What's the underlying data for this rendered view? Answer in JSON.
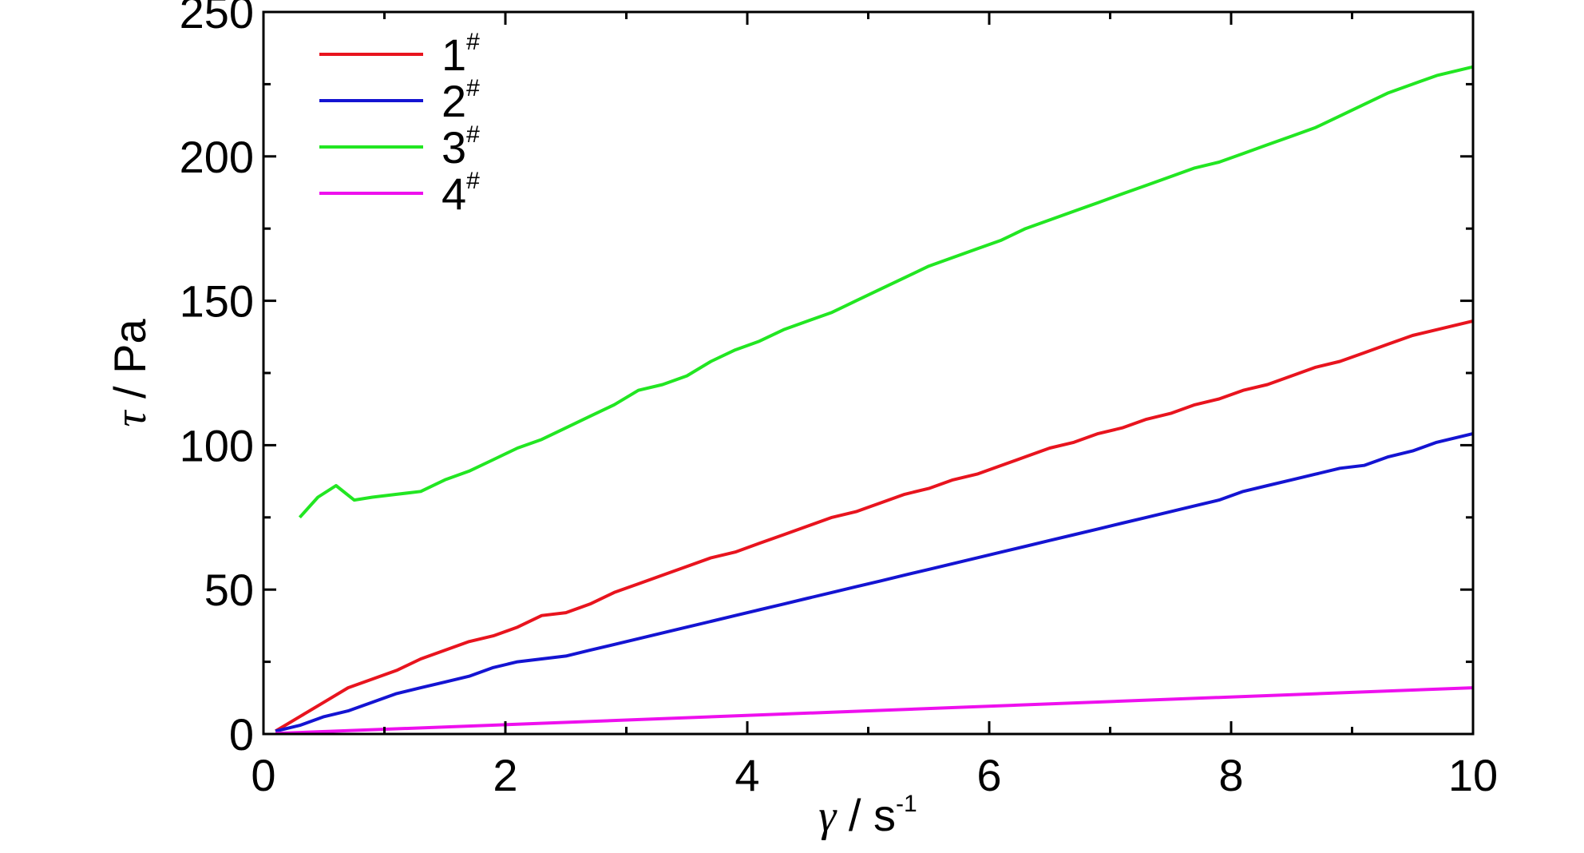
{
  "chart_data": {
    "type": "line",
    "title": "",
    "xlabel": {
      "symbol": "γ",
      "text": " / s",
      "sup": "-1"
    },
    "ylabel": {
      "symbol": "τ",
      "text": " / Pa"
    },
    "xlim": [
      0,
      10
    ],
    "ylim": [
      0,
      250
    ],
    "xticks": [
      0,
      2,
      4,
      6,
      8,
      10
    ],
    "yticks": [
      0,
      50,
      100,
      150,
      200,
      250
    ],
    "grid": false,
    "legend_position": "top-left",
    "series": [
      {
        "name": "1",
        "name_sup": "#",
        "color": "#e8141e",
        "x": [
          0.1,
          0.3,
          0.5,
          0.7,
          0.9,
          1.1,
          1.3,
          1.5,
          1.7,
          1.9,
          2.1,
          2.3,
          2.5,
          2.7,
          2.9,
          3.1,
          3.3,
          3.5,
          3.7,
          3.9,
          4.1,
          4.3,
          4.5,
          4.7,
          4.9,
          5.1,
          5.3,
          5.5,
          5.7,
          5.9,
          6.1,
          6.3,
          6.5,
          6.7,
          6.9,
          7.1,
          7.3,
          7.5,
          7.7,
          7.9,
          8.1,
          8.3,
          8.5,
          8.7,
          8.9,
          9.1,
          9.3,
          9.5,
          9.7,
          10.0
        ],
        "y": [
          1,
          6,
          11,
          16,
          19,
          22,
          26,
          29,
          32,
          34,
          37,
          41,
          42,
          45,
          49,
          52,
          55,
          58,
          61,
          63,
          66,
          69,
          72,
          75,
          77,
          80,
          83,
          85,
          88,
          90,
          93,
          96,
          99,
          101,
          104,
          106,
          109,
          111,
          114,
          116,
          119,
          121,
          124,
          127,
          129,
          132,
          135,
          138,
          140,
          143
        ]
      },
      {
        "name": "2",
        "name_sup": "#",
        "color": "#1414d2",
        "x": [
          0.1,
          0.3,
          0.5,
          0.7,
          0.9,
          1.1,
          1.3,
          1.5,
          1.7,
          1.9,
          2.1,
          2.3,
          2.5,
          2.7,
          2.9,
          3.1,
          3.3,
          3.5,
          3.7,
          3.9,
          4.1,
          4.3,
          4.5,
          4.7,
          4.9,
          5.1,
          5.3,
          5.5,
          5.7,
          5.9,
          6.1,
          6.3,
          6.5,
          6.7,
          6.9,
          7.1,
          7.3,
          7.5,
          7.7,
          7.9,
          8.1,
          8.3,
          8.5,
          8.7,
          8.9,
          9.1,
          9.3,
          9.5,
          9.7,
          10.0
        ],
        "y": [
          1,
          3,
          6,
          8,
          11,
          14,
          16,
          18,
          20,
          23,
          25,
          26,
          27,
          29,
          31,
          33,
          35,
          37,
          39,
          41,
          43,
          45,
          47,
          49,
          51,
          53,
          55,
          57,
          59,
          61,
          63,
          65,
          67,
          69,
          71,
          73,
          75,
          77,
          79,
          81,
          84,
          86,
          88,
          90,
          92,
          93,
          96,
          98,
          101,
          104
        ]
      },
      {
        "name": "3",
        "name_sup": "#",
        "color": "#22e622",
        "x": [
          0.3,
          0.45,
          0.6,
          0.75,
          0.9,
          1.1,
          1.3,
          1.5,
          1.7,
          1.9,
          2.1,
          2.3,
          2.5,
          2.7,
          2.9,
          3.1,
          3.3,
          3.5,
          3.7,
          3.9,
          4.1,
          4.3,
          4.5,
          4.7,
          4.9,
          5.1,
          5.3,
          5.5,
          5.7,
          5.9,
          6.1,
          6.3,
          6.5,
          6.7,
          6.9,
          7.1,
          7.3,
          7.5,
          7.7,
          7.9,
          8.1,
          8.3,
          8.5,
          8.7,
          8.9,
          9.1,
          9.3,
          9.5,
          9.7,
          10.0
        ],
        "y": [
          75,
          82,
          86,
          81,
          82,
          83,
          84,
          88,
          91,
          95,
          99,
          102,
          106,
          110,
          114,
          119,
          121,
          124,
          129,
          133,
          136,
          140,
          143,
          146,
          150,
          154,
          158,
          162,
          165,
          168,
          171,
          175,
          178,
          181,
          184,
          187,
          190,
          193,
          196,
          198,
          201,
          204,
          207,
          210,
          214,
          218,
          222,
          225,
          228,
          231
        ]
      },
      {
        "name": "4",
        "name_sup": "#",
        "color": "#ee10ee",
        "x": [
          0.1,
          10.0
        ],
        "y": [
          0.2,
          16
        ]
      }
    ]
  }
}
